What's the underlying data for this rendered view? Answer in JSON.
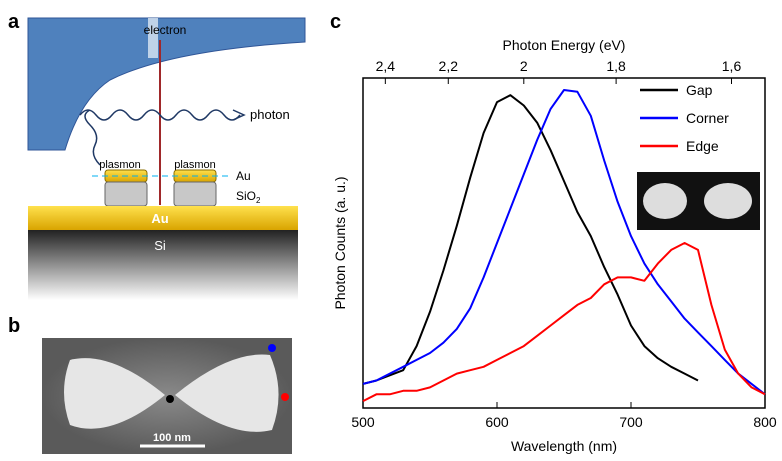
{
  "panel_labels": {
    "a": "a",
    "b": "b",
    "c": "c"
  },
  "schematic": {
    "electron": "electron",
    "photon": "photon",
    "plasmon_left": "plasmon",
    "plasmon_right": "plasmon",
    "au_particles": "Au",
    "sio2": "SiO",
    "sio2_subscript": "2",
    "au_film": "Au",
    "si": "Si"
  },
  "sem_image": {
    "scale_bar": "100 nm"
  },
  "chart_data": {
    "type": "line",
    "x_label": "Wavelength (nm)",
    "y_label": "Photon Counts (a. u.)",
    "x2_label": "Photon Energy (eV)",
    "x": [
      500,
      510,
      520,
      530,
      540,
      550,
      560,
      570,
      580,
      590,
      600,
      610,
      620,
      630,
      640,
      650,
      660,
      670,
      680,
      690,
      700,
      710,
      720,
      730,
      740,
      750,
      760,
      770,
      780,
      790,
      800
    ],
    "series": [
      {
        "name": "Gap",
        "color": "#000000",
        "values": [
          0.07,
          0.08,
          0.095,
          0.11,
          0.18,
          0.28,
          0.4,
          0.53,
          0.67,
          0.8,
          0.89,
          0.91,
          0.88,
          0.83,
          0.75,
          0.66,
          0.57,
          0.5,
          0.41,
          0.33,
          0.24,
          0.18,
          0.145,
          0.12,
          0.1,
          0.08,
          null,
          null,
          null,
          null,
          null
        ]
      },
      {
        "name": "Corner",
        "color": "#0000ff",
        "values": [
          0.07,
          0.08,
          0.1,
          0.12,
          0.14,
          0.16,
          0.19,
          0.23,
          0.29,
          0.38,
          0.48,
          0.58,
          0.68,
          0.78,
          0.87,
          0.925,
          0.92,
          0.85,
          0.72,
          0.6,
          0.5,
          0.42,
          0.36,
          0.31,
          0.26,
          0.22,
          0.18,
          0.14,
          0.1,
          0.07,
          0.04
        ]
      },
      {
        "name": "Edge",
        "color": "#ff0000",
        "values": [
          0.02,
          0.04,
          0.04,
          0.05,
          0.05,
          0.06,
          0.08,
          0.1,
          0.11,
          0.12,
          0.14,
          0.16,
          0.18,
          0.21,
          0.24,
          0.27,
          0.3,
          0.32,
          0.36,
          0.38,
          0.38,
          0.37,
          0.42,
          0.46,
          0.48,
          0.46,
          0.3,
          0.17,
          0.1,
          0.06,
          0.04
        ]
      }
    ],
    "xlim": [
      500,
      800
    ],
    "xticks": [
      500,
      600,
      700,
      800
    ],
    "ylim": [
      0,
      0.96
    ],
    "x2lim": [
      2.48,
      1.55
    ],
    "x2scale": "reciprocal",
    "x2ticks": [
      {
        "value": 2.4,
        "label": "2,4"
      },
      {
        "value": 2.2,
        "label": "2,2"
      },
      2,
      {
        "value": 1.8,
        "label": "1,8"
      },
      {
        "value": 1.6,
        "label": "1,6"
      }
    ],
    "legend": "upper right"
  }
}
